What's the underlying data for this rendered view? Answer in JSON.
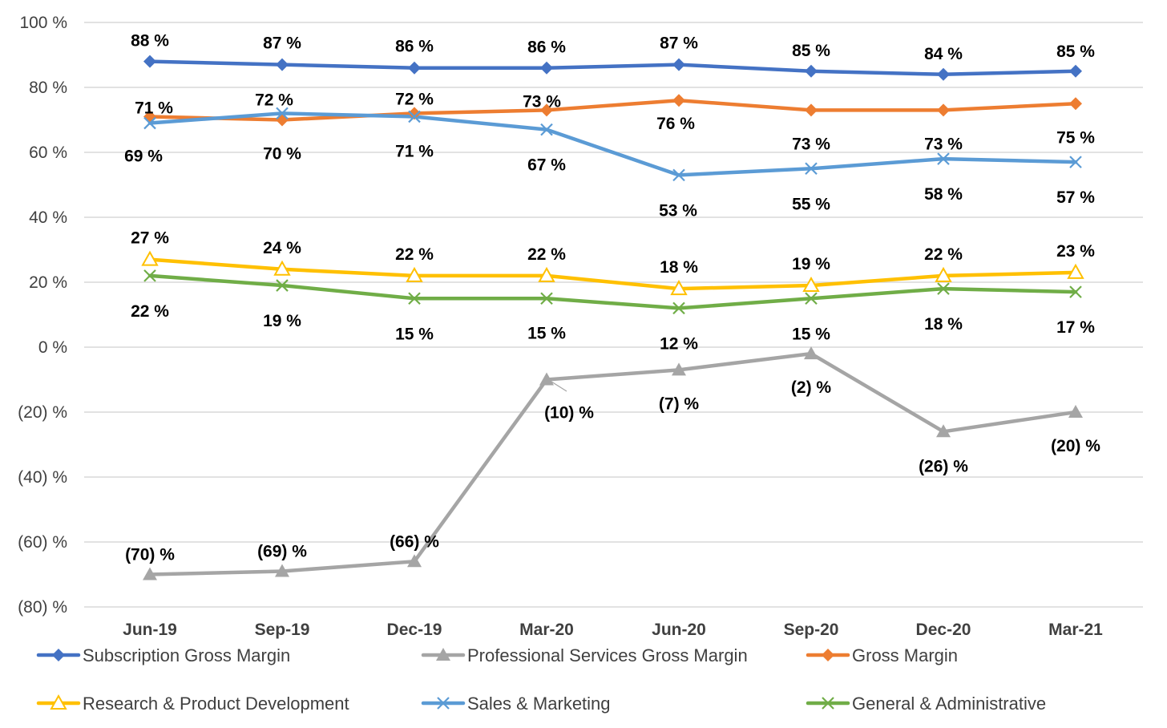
{
  "chart_data": {
    "type": "line",
    "categories": [
      "Jun-19",
      "Sep-19",
      "Dec-19",
      "Mar-20",
      "Jun-20",
      "Sep-20",
      "Dec-20",
      "Mar-21"
    ],
    "ylim": [
      -80,
      100
    ],
    "yticks": [
      100,
      80,
      60,
      40,
      20,
      0,
      -20,
      -40,
      -60,
      -80
    ],
    "ytick_labels": [
      "100 %",
      "80 %",
      "60 %",
      "40 %",
      "20 %",
      "0 %",
      "(20) %",
      "(40) %",
      "(60) %",
      "(80) %"
    ],
    "grid": true,
    "legend_position": "bottom",
    "series": [
      {
        "name": "Subscription Gross Margin",
        "color": "#4472C4",
        "marker": "diamond",
        "values": [
          88,
          87,
          86,
          86,
          87,
          85,
          84,
          85
        ],
        "labels": [
          "88 %",
          "87 %",
          "86 %",
          "86 %",
          "87 %",
          "85 %",
          "84 %",
          "85 %"
        ]
      },
      {
        "name": "Professional Services Gross Margin",
        "color": "#A5A5A5",
        "marker": "triangle-filled",
        "values": [
          -70,
          -69,
          -66,
          -10,
          -7,
          -2,
          -26,
          -20
        ],
        "labels": [
          "(70) %",
          "(69) %",
          "(66) %",
          "(10) %",
          "(7) %",
          "(2) %",
          "(26) %",
          "(20) %"
        ]
      },
      {
        "name": "Gross Margin",
        "color": "#ED7D31",
        "marker": "diamond",
        "values": [
          71,
          70,
          72,
          73,
          76,
          73,
          73,
          75
        ],
        "labels": [
          "71 %",
          "70 %",
          "72 %",
          "73 %",
          "76 %",
          "73 %",
          "73 %",
          "75 %"
        ]
      },
      {
        "name": "Research & Product Development",
        "color": "#FFC000",
        "marker": "triangle-open",
        "values": [
          27,
          24,
          22,
          22,
          18,
          19,
          22,
          23
        ],
        "labels": [
          "27 %",
          "24 %",
          "22 %",
          "22 %",
          "18 %",
          "19 %",
          "22 %",
          "23 %"
        ]
      },
      {
        "name": "Sales & Marketing",
        "color": "#5B9BD5",
        "marker": "x",
        "values": [
          69,
          72,
          71,
          67,
          53,
          55,
          58,
          57
        ],
        "labels": [
          "69 %",
          "72 %",
          "71 %",
          "67 %",
          "53 %",
          "55 %",
          "58 %",
          "57 %"
        ]
      },
      {
        "name": "General & Administrative",
        "color": "#70AD47",
        "marker": "x",
        "values": [
          22,
          19,
          15,
          15,
          12,
          15,
          18,
          17
        ],
        "labels": [
          "22 %",
          "19 %",
          "15 %",
          "15 %",
          "12 %",
          "15 %",
          "18 %",
          "17 %"
        ]
      }
    ]
  }
}
